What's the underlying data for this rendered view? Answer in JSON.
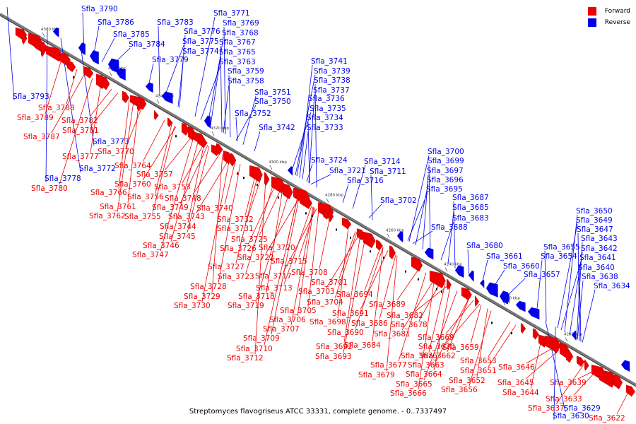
{
  "title": "Streptomyces flavogriseus ATCC 33331, complete genome. - 0..7337497",
  "colors": {
    "forward": "#ee0000",
    "reverse": "#0000ee",
    "backbone": "#7a7a7a"
  },
  "legend": [
    {
      "label": "Forward",
      "strand": "forward"
    },
    {
      "label": "Reverse",
      "strand": "reverse"
    }
  ],
  "scale_ticks": [
    "4380 kbp",
    "4360 kbp",
    "4340 kbp",
    "4320 kbp",
    "4300 kbp",
    "4280 kbp",
    "4260 kbp",
    "4240 kbp",
    "4220 kbp",
    "4200 kbp"
  ],
  "genes_reverse": [
    "Sfla_3790",
    "Sfla_3786",
    "Sfla_3785",
    "Sfla_3784",
    "Sfla_3783",
    "Sfla_3779",
    "Sfla_3793",
    "Sfla_3771",
    "Sfla_3769",
    "Sfla_3776",
    "Sfla_3768",
    "Sfla_3775",
    "Sfla_3767",
    "Sfla_3774",
    "Sfla_3765",
    "Sfla_3763",
    "Sfla_3759",
    "Sfla_3758",
    "Sfla_3751",
    "Sfla_3750",
    "Sfla_3752",
    "Sfla_3742",
    "Sfla_3741",
    "Sfla_3739",
    "Sfla_3738",
    "Sfla_3737",
    "Sfla_3736",
    "Sfla_3735",
    "Sfla_3734",
    "Sfla_3733",
    "Sfla_3773",
    "Sfla_3772",
    "Sfla_3778",
    "Sfla_3724",
    "Sfla_3714",
    "Sfla_3721",
    "Sfla_3711",
    "Sfla_3716",
    "Sfla_3702",
    "Sfla_3700",
    "Sfla_3699",
    "Sfla_3697",
    "Sfla_3696",
    "Sfla_3695",
    "Sfla_3687",
    "Sfla_3685",
    "Sfla_3683",
    "Sfla_3688",
    "Sfla_3680",
    "Sfla_3661",
    "Sfla_3660",
    "Sfla_3657",
    "Sfla_3655",
    "Sfla_3654",
    "Sfla_3650",
    "Sfla_3649",
    "Sfla_3647",
    "Sfla_3643",
    "Sfla_3642",
    "Sfla_3641",
    "Sfla_3640",
    "Sfla_3638",
    "Sfla_3634",
    "Sfla_3629",
    "Sfla_3630"
  ],
  "genes_forward": [
    "Sfla_3788",
    "Sfla_3789",
    "Sfla_3782",
    "Sfla_3781",
    "Sfla_3787",
    "Sfla_3777",
    "Sfla_3770",
    "Sfla_3764",
    "Sfla_3757",
    "Sfla_3760",
    "Sfla_3766",
    "Sfla_3756",
    "Sfla_3753",
    "Sfla_3748",
    "Sfla_3780",
    "Sfla_3761",
    "Sfla_3762",
    "Sfla_3755",
    "Sfla_3749",
    "Sfla_3743",
    "Sfla_3740",
    "Sfla_3744",
    "Sfla_3745",
    "Sfla_3746",
    "Sfla_3747",
    "Sfla_3732",
    "Sfla_3731",
    "Sfla_3725",
    "Sfla_3726",
    "Sfla_3722",
    "Sfla_3720",
    "Sfla_3715",
    "Sfla_3727",
    "Sfla_3723",
    "Sfla_3717",
    "Sfla_3708",
    "Sfla_3701",
    "Sfla_3728",
    "Sfla_3713",
    "Sfla_3703",
    "Sfla_3729",
    "Sfla_3718",
    "Sfla_3704",
    "Sfla_3730",
    "Sfla_3719",
    "Sfla_3705",
    "Sfla_3706",
    "Sfla_3707",
    "Sfla_3709",
    "Sfla_3710",
    "Sfla_3712",
    "Sfla_3694",
    "Sfla_3689",
    "Sfla_3691",
    "Sfla_3682",
    "Sfla_3698",
    "Sfla_3686",
    "Sfla_3678",
    "Sfla_3690",
    "Sfla_3681",
    "Sfla_3684",
    "Sfla_3692",
    "Sfla_3693",
    "Sfla_3669",
    "Sfla_3670",
    "Sfla_3659",
    "Sfla_3676",
    "Sfla_3662",
    "Sfla_3677",
    "Sfla_3663",
    "Sfla_3679",
    "Sfla_3664",
    "Sfla_3653",
    "Sfla_3651",
    "Sfla_3665",
    "Sfla_3652",
    "Sfla_3666",
    "Sfla_3656",
    "Sfla_3646",
    "Sfla_3645",
    "Sfla_3644",
    "Sfla_3639",
    "Sfla_3633",
    "Sfla_3637",
    "Sfla_3622"
  ]
}
